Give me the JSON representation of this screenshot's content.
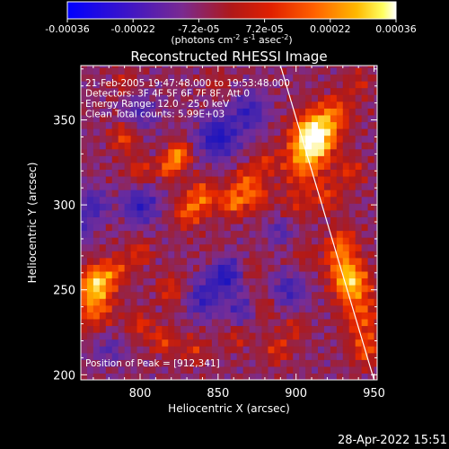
{
  "colorbar": {
    "ticks": [
      "-0.00036",
      "-0.00022",
      "-7.2e-05",
      "7.2e-05",
      "0.00022",
      "0.00036"
    ],
    "units_prefix": "(photons cm",
    "units_exp1": "-2",
    "units_mid": " s",
    "units_exp2": "-1",
    "units_mid2": " asec",
    "units_exp3": "-2",
    "units_suffix": ")"
  },
  "chart_data": {
    "type": "heatmap",
    "title": "Reconstructed RHESSI Image",
    "xlabel": "Heliocentric X (arcsec)",
    "ylabel": "Heliocentric Y (arcsec)",
    "xlim": [
      762,
      952
    ],
    "ylim": [
      197,
      382
    ],
    "x_ticks": [
      "800",
      "850",
      "900",
      "950"
    ],
    "y_ticks": [
      "200",
      "250",
      "300",
      "350"
    ],
    "color_range": [
      -0.00036,
      0.00036
    ],
    "peak": [
      912,
      341
    ],
    "limb_line": [
      [
        890,
        382
      ],
      [
        950,
        197
      ]
    ],
    "colors": {
      "low": "#0000c8",
      "mid": "#7c2a9a",
      "high": "#ffffff"
    }
  },
  "info_lines": [
    "21-Feb-2005 19:47:48.000 to 19:53:48.000",
    "Detectors: 3F 4F 5F 6F 7F 8F, Att 0",
    "Energy Range: 12.0 - 25.0 keV",
    "Clean     Total counts: 5.99E+03"
  ],
  "peak_label": "Position of Peak = [912,341]",
  "timestamp": "28-Apr-2022 15:51"
}
